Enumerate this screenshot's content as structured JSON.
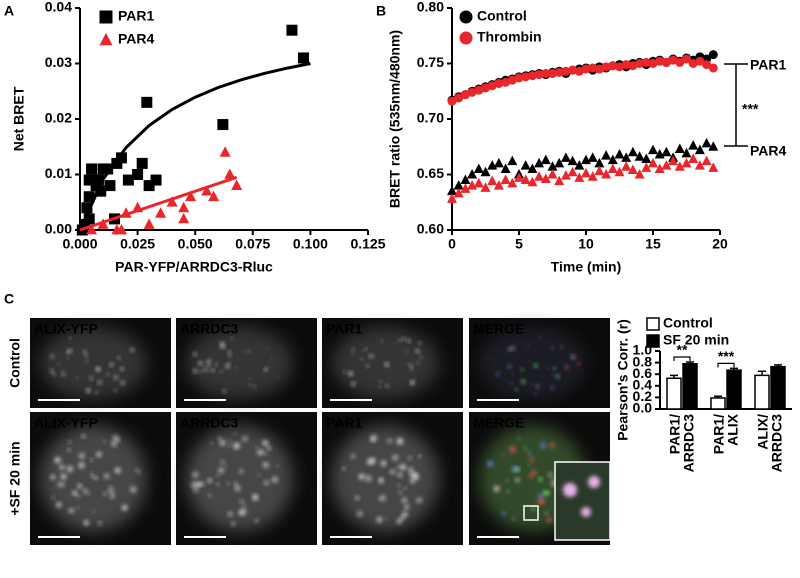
{
  "panel_labels": [
    "A",
    "B",
    "C"
  ],
  "chart_data": [
    {
      "type": "scatter",
      "xlabel": "PAR-YFP/ARRDC3-Rluc",
      "ylabel": "Net BRET",
      "xlim": [
        0,
        0.125
      ],
      "ylim": [
        0,
        0.04
      ],
      "xticks": [
        {
          "value": 0,
          "label": "0.000"
        },
        {
          "value": 0.025,
          "label": "0.025"
        },
        {
          "value": 0.05,
          "label": "0.050"
        },
        {
          "value": 0.075,
          "label": "0.075"
        },
        {
          "value": 0.1,
          "label": "0.100"
        },
        {
          "value": 0.125,
          "label": "0.125"
        }
      ],
      "yticks": [
        {
          "value": 0,
          "label": "0.00"
        },
        {
          "value": 0.01,
          "label": "0.01"
        },
        {
          "value": 0.02,
          "label": "0.02"
        },
        {
          "value": 0.03,
          "label": "0.03"
        },
        {
          "value": 0.04,
          "label": "0.04"
        }
      ],
      "series": [
        {
          "name": "PAR1",
          "color": "#000000",
          "marker": "square",
          "x": [
            0.001,
            0.002,
            0.003,
            0.004,
            0.004,
            0.004,
            0.005,
            0.006,
            0.007,
            0.008,
            0.009,
            0.01,
            0.012,
            0.013,
            0.015,
            0.016,
            0.018,
            0.021,
            0.025,
            0.027,
            0.029,
            0.03,
            0.033,
            0.062,
            0.092,
            0.097
          ],
          "y": [
            0.0,
            0.001,
            0.004,
            0.002,
            0.006,
            0.009,
            0.011,
            0.009,
            0.008,
            0.009,
            0.007,
            0.011,
            0.011,
            0.008,
            0.002,
            0.012,
            0.013,
            0.009,
            0.01,
            0.012,
            0.023,
            0.008,
            0.009,
            0.019,
            0.036,
            0.031
          ]
        },
        {
          "name": "PAR4",
          "color": "#e8262b",
          "marker": "triangle",
          "x": [
            0.005,
            0.01,
            0.016,
            0.018,
            0.02,
            0.025,
            0.03,
            0.035,
            0.04,
            0.045,
            0.045,
            0.048,
            0.055,
            0.058,
            0.063,
            0.065,
            0.068
          ],
          "y": [
            0.0,
            0.001,
            0.0,
            0.0,
            0.003,
            0.004,
            0.001,
            0.003,
            0.005,
            0.004,
            0.002,
            0.006,
            0.007,
            0.006,
            0.014,
            0.01,
            0.008
          ]
        }
      ],
      "curves": [
        {
          "color": "#000000",
          "x": [
            0,
            0.01,
            0.02,
            0.03,
            0.04,
            0.05,
            0.06,
            0.07,
            0.08,
            0.09,
            0.1
          ],
          "y": [
            0,
            0.00912,
            0.01487,
            0.01883,
            0.02173,
            0.02393,
            0.02567,
            0.02707,
            0.02822,
            0.02918,
            0.03
          ]
        },
        {
          "color": "#e8262b",
          "x": [
            0,
            0.068
          ],
          "y": [
            0,
            0.0095
          ]
        }
      ]
    },
    {
      "type": "scatter",
      "xlabel": "Time (min)",
      "ylabel": "BRET ratio (535nm/480nm)",
      "xlim": [
        0,
        20
      ],
      "ylim": [
        0.6,
        0.8
      ],
      "xticks": [
        0,
        5,
        10,
        15,
        20
      ],
      "yticks": [
        {
          "value": 0.6,
          "label": "0.60"
        },
        {
          "value": 0.65,
          "label": "0.65"
        },
        {
          "value": 0.7,
          "label": "0.70"
        },
        {
          "value": 0.75,
          "label": "0.75"
        },
        {
          "value": 0.8,
          "label": "0.80"
        }
      ],
      "groups": [
        {
          "label": "PAR1",
          "marker": "circle"
        },
        {
          "label": "PAR4",
          "marker": "triangle"
        }
      ],
      "significance": "***",
      "x": [
        0,
        0.5,
        1,
        1.5,
        2,
        2.5,
        3,
        3.5,
        4,
        4.5,
        5,
        5.5,
        6,
        6.5,
        7,
        7.5,
        8,
        8.5,
        9,
        9.5,
        10,
        10.5,
        11,
        11.5,
        12,
        12.5,
        13,
        13.5,
        14,
        14.5,
        15,
        15.5,
        16,
        16.5,
        17,
        17.5,
        18,
        18.5,
        19,
        19.5
      ],
      "series": [
        {
          "name": "Control",
          "color": "#000000",
          "values": [
            [
              0.717,
              0.72,
              0.722,
              0.725,
              0.727,
              0.729,
              0.731,
              0.733,
              0.735,
              0.736,
              0.738,
              0.739,
              0.74,
              0.741,
              0.74,
              0.742,
              0.743,
              0.741,
              0.744,
              0.745,
              0.746,
              0.744,
              0.747,
              0.746,
              0.748,
              0.749,
              0.747,
              0.75,
              0.751,
              0.749,
              0.752,
              0.753,
              0.751,
              0.754,
              0.752,
              0.755,
              0.753,
              0.756,
              0.754,
              0.758
            ],
            [
              0.635,
              0.64,
              0.645,
              0.65,
              0.655,
              0.652,
              0.658,
              0.66,
              0.655,
              0.662,
              0.65,
              0.658,
              0.655,
              0.66,
              0.663,
              0.657,
              0.66,
              0.665,
              0.662,
              0.658,
              0.663,
              0.665,
              0.66,
              0.667,
              0.663,
              0.668,
              0.665,
              0.67,
              0.666,
              0.664,
              0.672,
              0.668,
              0.67,
              0.665,
              0.673,
              0.669,
              0.676,
              0.672,
              0.678,
              0.675
            ]
          ]
        },
        {
          "name": "Thrombin",
          "color": "#e8262b",
          "values": [
            [
              0.716,
              0.719,
              0.722,
              0.724,
              0.726,
              0.728,
              0.73,
              0.732,
              0.733,
              0.735,
              0.737,
              0.738,
              0.739,
              0.74,
              0.741,
              0.741,
              0.742,
              0.743,
              0.744,
              0.743,
              0.745,
              0.746,
              0.745,
              0.747,
              0.748,
              0.747,
              0.749,
              0.748,
              0.75,
              0.751,
              0.75,
              0.752,
              0.751,
              0.753,
              0.751,
              0.754,
              0.75,
              0.752,
              0.749,
              0.746
            ],
            [
              0.628,
              0.633,
              0.637,
              0.64,
              0.642,
              0.638,
              0.644,
              0.64,
              0.645,
              0.642,
              0.647,
              0.645,
              0.643,
              0.648,
              0.646,
              0.65,
              0.644,
              0.649,
              0.652,
              0.647,
              0.651,
              0.648,
              0.653,
              0.65,
              0.655,
              0.652,
              0.657,
              0.654,
              0.65,
              0.656,
              0.66,
              0.655,
              0.658,
              0.662,
              0.657,
              0.66,
              0.664,
              0.658,
              0.662,
              0.656
            ]
          ]
        }
      ]
    },
    {
      "type": "bar",
      "ylabel": "Pearson's Corr. (r)",
      "categories": [
        [
          "PAR1/",
          "ARRDC3"
        ],
        [
          "PAR1/",
          "ALIX"
        ],
        [
          "ALIX/",
          "ARRDC3"
        ]
      ],
      "ylim": [
        0,
        1.0
      ],
      "yticks": [
        {
          "value": 0,
          "label": "0.0"
        },
        {
          "value": 0.2,
          "label": "0.2"
        },
        {
          "value": 0.4,
          "label": "0.4"
        },
        {
          "value": 0.6,
          "label": "0.6"
        },
        {
          "value": 0.8,
          "label": "0.8"
        },
        {
          "value": 1.0,
          "label": "1.0"
        }
      ],
      "series": [
        {
          "name": "Control",
          "color": "#ffffff",
          "values": [
            0.53,
            0.19,
            0.58
          ],
          "errors": [
            0.05,
            0.03,
            0.07
          ]
        },
        {
          "name": "SF 20 min",
          "color": "#000000",
          "values": [
            0.78,
            0.67,
            0.73
          ],
          "errors": [
            0.03,
            0.03,
            0.03
          ]
        }
      ],
      "annotations": [
        "**",
        "***"
      ]
    }
  ],
  "micrographs": {
    "channels": [
      {
        "label": "ALIX-YFP",
        "color": "#4cb848"
      },
      {
        "label": "ARRDC3",
        "color": "#e8262b"
      },
      {
        "label": "PAR1",
        "color": "#2f6fd0"
      },
      {
        "label": "MERGE",
        "color": "#ffffff"
      }
    ],
    "conditions": [
      "Control",
      "+SF 20 min"
    ]
  }
}
